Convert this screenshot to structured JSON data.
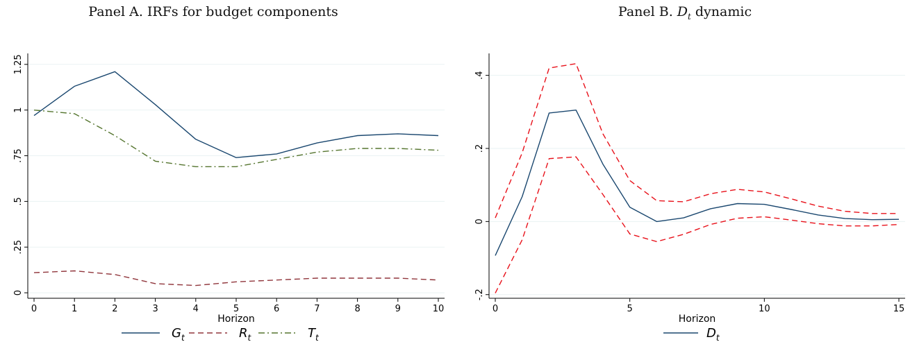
{
  "panels": [
    {
      "title_prefix": "Panel A. IRFs for budget components",
      "title_var": "",
      "title_sub": "",
      "title_suffix": ""
    },
    {
      "title_prefix": "Panel B. ",
      "title_var": "D",
      "title_sub": "t",
      "title_suffix": " dynamic"
    }
  ],
  "colors": {
    "navy": "#1a476f",
    "red": "#e8111a",
    "darkred": "#90353b",
    "green": "#55752f",
    "grid": "#eaf2f3"
  },
  "chart_data": [
    {
      "type": "line",
      "xlabel": "Horizon",
      "ylabel": "",
      "xlim": [
        0,
        10
      ],
      "ylim": [
        -0.03,
        1.31
      ],
      "xticks": [
        0,
        1,
        2,
        3,
        4,
        5,
        6,
        7,
        8,
        9,
        10
      ],
      "yticks": [
        0,
        0.25,
        0.5,
        0.75,
        1,
        1.25
      ],
      "yticklabels": [
        "0",
        ".25",
        ".5",
        ".75",
        "1",
        "1.25"
      ],
      "grid": true,
      "legend_position": "bottom",
      "x": [
        0,
        1,
        2,
        3,
        4,
        5,
        6,
        7,
        8,
        9,
        10
      ],
      "series": [
        {
          "name": "G",
          "sub": "t",
          "style": "solid",
          "color": "#1a476f",
          "values": [
            0.97,
            1.13,
            1.21,
            1.03,
            0.84,
            0.74,
            0.76,
            0.82,
            0.86,
            0.87,
            0.86
          ]
        },
        {
          "name": "R",
          "sub": "t",
          "style": "dash",
          "color": "#90353b",
          "values": [
            0.11,
            0.12,
            0.1,
            0.05,
            0.04,
            0.06,
            0.07,
            0.08,
            0.08,
            0.08,
            0.07
          ]
        },
        {
          "name": "T",
          "sub": "t",
          "style": "dashdot",
          "color": "#55752f",
          "values": [
            1.0,
            0.98,
            0.86,
            0.72,
            0.69,
            0.69,
            0.73,
            0.77,
            0.79,
            0.79,
            0.78
          ]
        }
      ]
    },
    {
      "type": "line",
      "xlabel": "Horizon",
      "ylabel": "",
      "xlim": [
        0,
        15
      ],
      "ylim": [
        -0.21,
        0.46
      ],
      "xticks": [
        0,
        5,
        10,
        15
      ],
      "yticks": [
        -0.2,
        0,
        0.2,
        0.4
      ],
      "yticklabels": [
        "-.2",
        "0",
        ".2",
        ".4"
      ],
      "grid": true,
      "legend_position": "bottom",
      "x": [
        0,
        1,
        2,
        3,
        4,
        5,
        6,
        7,
        8,
        9,
        10,
        11,
        12,
        13,
        14,
        15
      ],
      "series": [
        {
          "name": "D",
          "sub": "t",
          "style": "solid",
          "color": "#1a476f",
          "legend": true,
          "values": [
            -0.093,
            0.068,
            0.297,
            0.305,
            0.157,
            0.039,
            0.0,
            0.01,
            0.035,
            0.049,
            0.047,
            0.033,
            0.018,
            0.008,
            0.005,
            0.006
          ]
        },
        {
          "name": "",
          "sub": "",
          "style": "dash",
          "color": "#e8111a",
          "legend": false,
          "values": [
            0.01,
            0.188,
            0.42,
            0.432,
            0.24,
            0.112,
            0.057,
            0.054,
            0.076,
            0.088,
            0.081,
            0.062,
            0.042,
            0.028,
            0.022,
            0.022
          ]
        },
        {
          "name": "",
          "sub": "",
          "style": "dash",
          "color": "#e8111a",
          "legend": false,
          "values": [
            -0.196,
            -0.05,
            0.172,
            0.177,
            0.074,
            -0.034,
            -0.055,
            -0.035,
            -0.008,
            0.009,
            0.013,
            0.004,
            -0.006,
            -0.012,
            -0.012,
            -0.008
          ]
        }
      ]
    }
  ]
}
